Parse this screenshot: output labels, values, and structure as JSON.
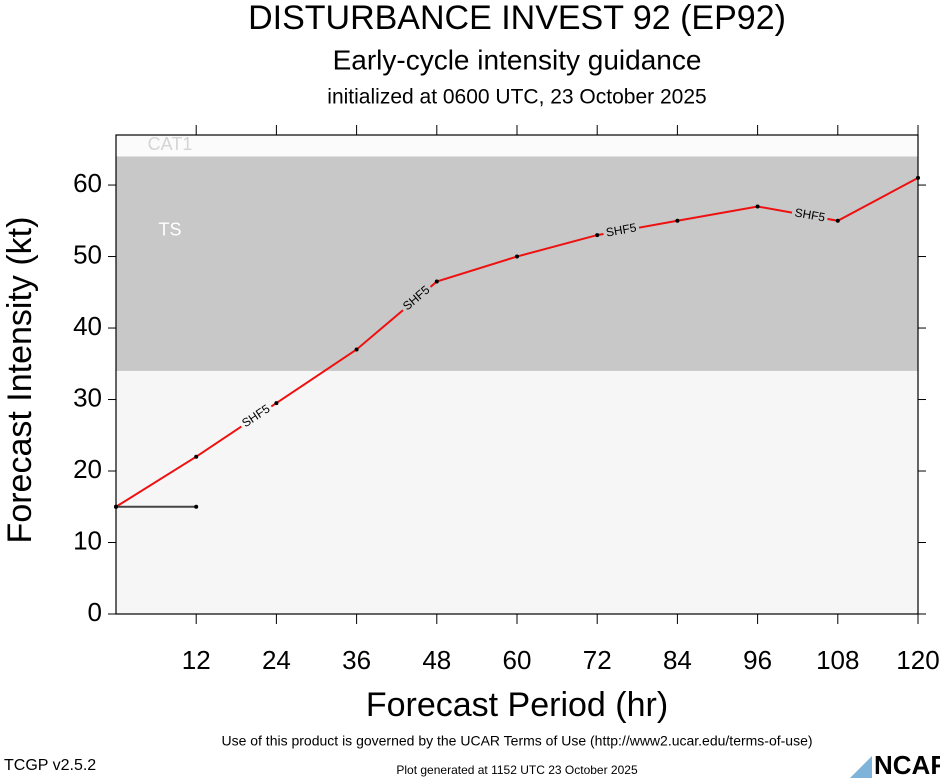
{
  "chart_data": {
    "type": "line",
    "title": "DISTURBANCE INVEST 92 (EP92)",
    "subtitle": "Early-cycle intensity guidance",
    "initialized": "initialized at 0600 UTC, 23 October 2025",
    "x_label": "Forecast Period (hr)",
    "y_label": "Forecast Intensity (kt)",
    "x": [
      0,
      12,
      24,
      36,
      48,
      60,
      72,
      84,
      96,
      108,
      120
    ],
    "series": [
      {
        "name": "SHF5",
        "color": "#ee1111",
        "values": [
          15,
          22,
          29.5,
          37,
          46.5,
          50,
          53,
          55,
          57,
          55,
          61
        ]
      },
      {
        "color": "#444444",
        "values": [
          15,
          15,
          null,
          null,
          null,
          null,
          null,
          null,
          null,
          null,
          null
        ]
      }
    ],
    "bands": [
      {
        "label": "TS",
        "from": 34,
        "to": 64,
        "color": "#c8c8c8"
      },
      {
        "label": "CAT1",
        "from": 64,
        "color": "#fbfbfb"
      }
    ],
    "background": "#f6f6f6",
    "xlim": [
      0,
      120
    ],
    "xticks": [
      12,
      24,
      36,
      48,
      60,
      72,
      84,
      96,
      108,
      120
    ],
    "ylim": [
      0,
      67
    ],
    "yticks": [
      0,
      10,
      20,
      30,
      40,
      50,
      60
    ]
  },
  "footer": {
    "terms": "Use of this product is governed by the UCAR Terms of Use (http://www2.ucar.edu/terms-of-use)",
    "version": "TCGP v2.5.2",
    "generated": "Plot generated at 1152 UTC   23 October 2025",
    "logo": "NCAR"
  }
}
